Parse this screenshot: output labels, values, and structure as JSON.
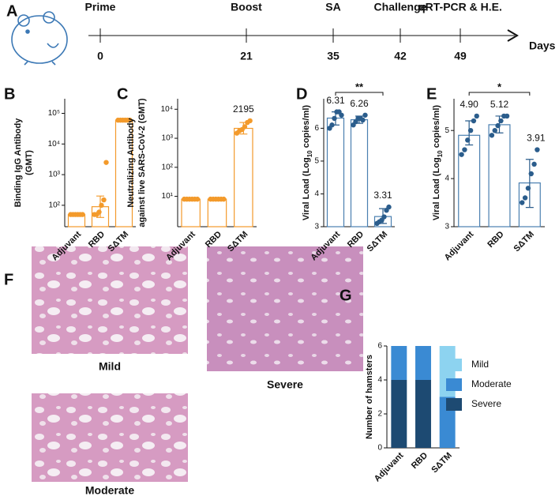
{
  "timeline": {
    "panel": "A",
    "unit": "Days",
    "events": [
      {
        "label": "Prime",
        "day": "0"
      },
      {
        "label": "Boost",
        "day": "21"
      },
      {
        "label": "SA",
        "day": "35"
      },
      {
        "label": "Challenge",
        "day": "42"
      },
      {
        "label": "qRT-PCR & H.E.",
        "day": "49"
      }
    ]
  },
  "histology": {
    "panel": "F",
    "images": [
      {
        "label": "Mild"
      },
      {
        "label": "Severe"
      },
      {
        "label": "Moderate"
      }
    ]
  },
  "chart_data": [
    {
      "panel": "B",
      "type": "bar",
      "ylabel": [
        "Binding IgG Antibody",
        "(GMT)"
      ],
      "log": true,
      "ylim": [
        20,
        300000
      ],
      "yticks": [
        {
          "value": 100,
          "label": "10²"
        },
        {
          "value": 1000,
          "label": "10³"
        },
        {
          "value": 10000,
          "label": "10⁴"
        },
        {
          "value": 100000,
          "label": "10⁵"
        }
      ],
      "categories": [
        "Adjuvant",
        "RBD",
        "SΔTM"
      ],
      "series": [
        {
          "color": "#f39a2b",
          "values": [
            50,
            90,
            60000
          ],
          "error_bounds": [
            null,
            [
              40,
              200
            ],
            null
          ],
          "points": [
            [
              50,
              50,
              50,
              50,
              50,
              50
            ],
            [
              50,
              50,
              60,
              100,
              150,
              2500
            ],
            [
              60000,
              60000,
              60000,
              60000,
              60000,
              60000
            ]
          ]
        }
      ]
    },
    {
      "panel": "C",
      "type": "bar",
      "ylabel": [
        "Neutralizing Antibody",
        "against live SARS-CoV-2 (GMT)"
      ],
      "log": true,
      "ylim": [
        0.9,
        23000
      ],
      "yticks": [
        {
          "value": 10,
          "label": "10¹"
        },
        {
          "value": 100,
          "label": "10²"
        },
        {
          "value": 1000,
          "label": "10³"
        },
        {
          "value": 10000,
          "label": "10⁴"
        }
      ],
      "categories": [
        "Adjuvant",
        "RBD",
        "SΔTM"
      ],
      "series": [
        {
          "color": "#f39a2b",
          "values": [
            8,
            8,
            2195
          ],
          "value_labels": [
            null,
            null,
            "2195"
          ],
          "error_bounds": [
            null,
            null,
            [
              1400,
              3500
            ]
          ],
          "points": [
            [
              8,
              8,
              8,
              8,
              8,
              8
            ],
            [
              8,
              8,
              8,
              8,
              8,
              8
            ],
            [
              1500,
              1800,
              2000,
              2500,
              3500,
              4000
            ]
          ]
        }
      ]
    },
    {
      "panel": "D",
      "type": "bar",
      "ylabel": [
        "Viral Load (Log",
        "10",
        " copies/ml)"
      ],
      "log": false,
      "ylim": [
        3,
        6.9
      ],
      "yticks": [
        3,
        4,
        5,
        6
      ],
      "categories": [
        "Adjuvant",
        "RBD",
        "SΔTM"
      ],
      "series": [
        {
          "color": "#4a7fb0",
          "point_color": "#2b5d8c",
          "values": [
            6.31,
            6.26,
            3.31
          ],
          "value_labels": [
            "6.31",
            "6.26",
            "3.31"
          ],
          "error_bounds": [
            [
              6.1,
              6.5
            ],
            [
              6.15,
              6.37
            ],
            [
              3.1,
              3.55
            ]
          ],
          "points": [
            [
              6.0,
              6.1,
              6.3,
              6.5,
              6.5,
              6.4
            ],
            [
              6.1,
              6.2,
              6.3,
              6.3,
              6.25,
              6.4
            ],
            [
              3.1,
              3.15,
              3.2,
              3.3,
              3.5,
              3.6
            ]
          ]
        }
      ],
      "significance": {
        "text": "**",
        "between": [
          0,
          2
        ]
      }
    },
    {
      "panel": "E",
      "type": "bar",
      "ylabel": [
        "Viral Load (Log",
        "10",
        " copies/ml)"
      ],
      "log": false,
      "ylim": [
        3,
        5.66
      ],
      "yticks": [
        3,
        4,
        5
      ],
      "categories": [
        "Adjuvant",
        "RBD",
        "SΔTM"
      ],
      "series": [
        {
          "color": "#4a7fb0",
          "point_color": "#2b5d8c",
          "values": [
            4.9,
            5.12,
            3.91
          ],
          "value_labels": [
            "4.90",
            "5.12",
            "3.91"
          ],
          "error_bounds": [
            [
              4.7,
              5.2
            ],
            [
              4.95,
              5.3
            ],
            [
              3.4,
              4.4
            ]
          ],
          "points": [
            [
              4.5,
              4.6,
              4.8,
              5.0,
              5.2,
              5.3
            ],
            [
              4.9,
              5.0,
              5.1,
              5.2,
              5.3,
              5.3
            ],
            [
              3.5,
              3.6,
              3.8,
              4.1,
              4.3,
              4.6
            ]
          ]
        }
      ],
      "significance": {
        "text": "*",
        "between": [
          0,
          2
        ]
      }
    },
    {
      "panel": "G",
      "type": "stacked_bar",
      "ylabel": [
        "Number of hamsters"
      ],
      "log": false,
      "ylim": [
        0,
        6
      ],
      "yticks": [
        0,
        2,
        4,
        6
      ],
      "categories": [
        "Adjuvant",
        "RBD",
        "SΔTM"
      ],
      "series": [
        {
          "name": "Severe",
          "color": "#1d4a72",
          "values": [
            4,
            4,
            0
          ]
        },
        {
          "name": "Moderate",
          "color": "#3a8ad3",
          "values": [
            2,
            2,
            3
          ]
        },
        {
          "name": "Mild",
          "color": "#8dd3f0",
          "values": [
            0,
            0,
            3
          ]
        }
      ]
    }
  ]
}
